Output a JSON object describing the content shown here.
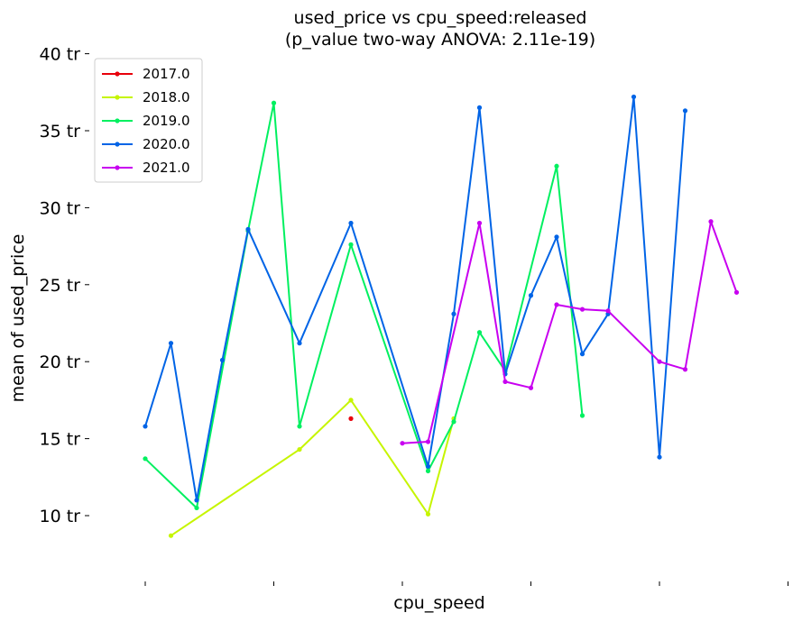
{
  "chart_data": {
    "type": "line",
    "title": "used_price vs cpu_speed:released",
    "subtitle": "(p_value two-way ANOVA: 2.11e-19)",
    "xlabel": "cpu_speed",
    "ylabel": "mean of used_price",
    "x_tick_labels": [
      "",
      "",
      "",
      "",
      "",
      ""
    ],
    "x_tick_positions": [
      0,
      5,
      10,
      15,
      20,
      25
    ],
    "xlim": [
      -0.5,
      25
    ],
    "ylim": [
      6,
      40
    ],
    "y_ticks": [
      10,
      15,
      20,
      25,
      30,
      35,
      40
    ],
    "y_tick_labels": [
      "10 tr",
      "15 tr",
      "20 tr",
      "25 tr",
      "30 tr",
      "35 tr",
      "40 tr"
    ],
    "grid": false,
    "legend_position": "top-left",
    "series": [
      {
        "name": "2017.0",
        "color": "#e8000b",
        "points": [
          [
            8,
            16.3
          ]
        ]
      },
      {
        "name": "2018.0",
        "color": "#c6f500",
        "points": [
          [
            1,
            8.7
          ],
          [
            6,
            14.3
          ],
          [
            8,
            17.5
          ],
          [
            11,
            10.1
          ],
          [
            12,
            16.3
          ]
        ]
      },
      {
        "name": "2019.0",
        "color": "#00f060",
        "points": [
          [
            0,
            13.7
          ],
          [
            2,
            10.5
          ],
          [
            4,
            28.5
          ],
          [
            5,
            36.8
          ],
          [
            6,
            15.8
          ],
          [
            8,
            27.6
          ],
          [
            11,
            12.9
          ],
          [
            12,
            16.1
          ],
          [
            13,
            21.9
          ],
          [
            14,
            19.4
          ],
          [
            16,
            32.7
          ],
          [
            17,
            16.5
          ]
        ]
      },
      {
        "name": "2020.0",
        "color": "#0064e6",
        "points": [
          [
            0,
            15.8
          ],
          [
            1,
            21.2
          ],
          [
            2,
            11.0
          ],
          [
            3,
            20.1
          ],
          [
            4,
            28.6
          ],
          [
            6,
            21.2
          ],
          [
            8,
            29.0
          ],
          [
            11,
            13.2
          ],
          [
            12,
            23.1
          ],
          [
            13,
            36.5
          ],
          [
            14,
            19.2
          ],
          [
            15,
            24.3
          ],
          [
            16,
            28.1
          ],
          [
            17,
            20.5
          ],
          [
            18,
            23.1
          ],
          [
            19,
            37.2
          ],
          [
            20,
            13.8
          ],
          [
            21,
            36.3
          ]
        ]
      },
      {
        "name": "2021.0",
        "color": "#c800f0",
        "points": [
          [
            10,
            14.7
          ],
          [
            11,
            14.8
          ],
          [
            13,
            29.0
          ],
          [
            14,
            18.7
          ],
          [
            15,
            18.3
          ],
          [
            16,
            23.7
          ],
          [
            17,
            23.4
          ],
          [
            18,
            23.3
          ],
          [
            20,
            20.0
          ],
          [
            21,
            19.5
          ],
          [
            22,
            29.1
          ],
          [
            23,
            24.5
          ]
        ]
      }
    ]
  }
}
